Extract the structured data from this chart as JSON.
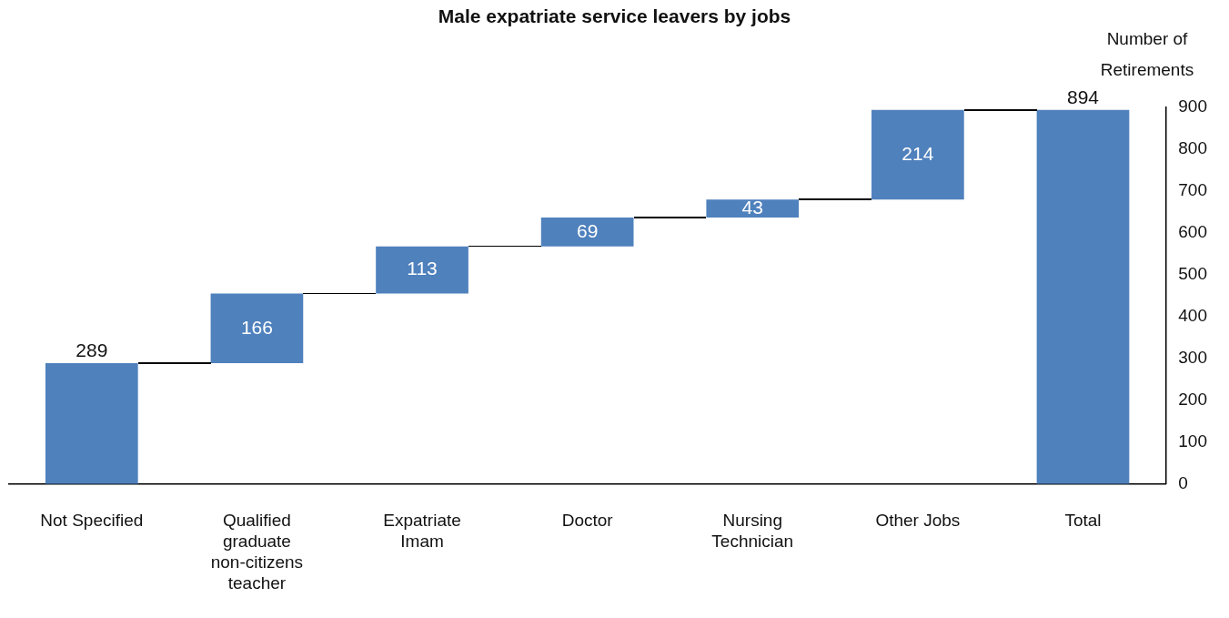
{
  "chart_data": {
    "type": "bar",
    "title": "Male expatriate service leavers by jobs",
    "ylabel": "Number of Retirements",
    "categories": [
      "Not Specified",
      "Qualified graduate non-citizens teacher",
      "Expatriate Imam",
      "Doctor",
      "Nursing Technician",
      "Other Jobs",
      "Total"
    ],
    "values": [
      289,
      166,
      113,
      69,
      43,
      214,
      894
    ],
    "base": [
      0,
      289,
      455,
      568,
      637,
      680,
      0
    ],
    "color": "#4f81bd",
    "ylim": [
      0,
      900
    ],
    "yticks": [
      0,
      100,
      200,
      300,
      400,
      500,
      600,
      700,
      800,
      900
    ],
    "grid": false,
    "legend": false,
    "data_labels": true
  }
}
